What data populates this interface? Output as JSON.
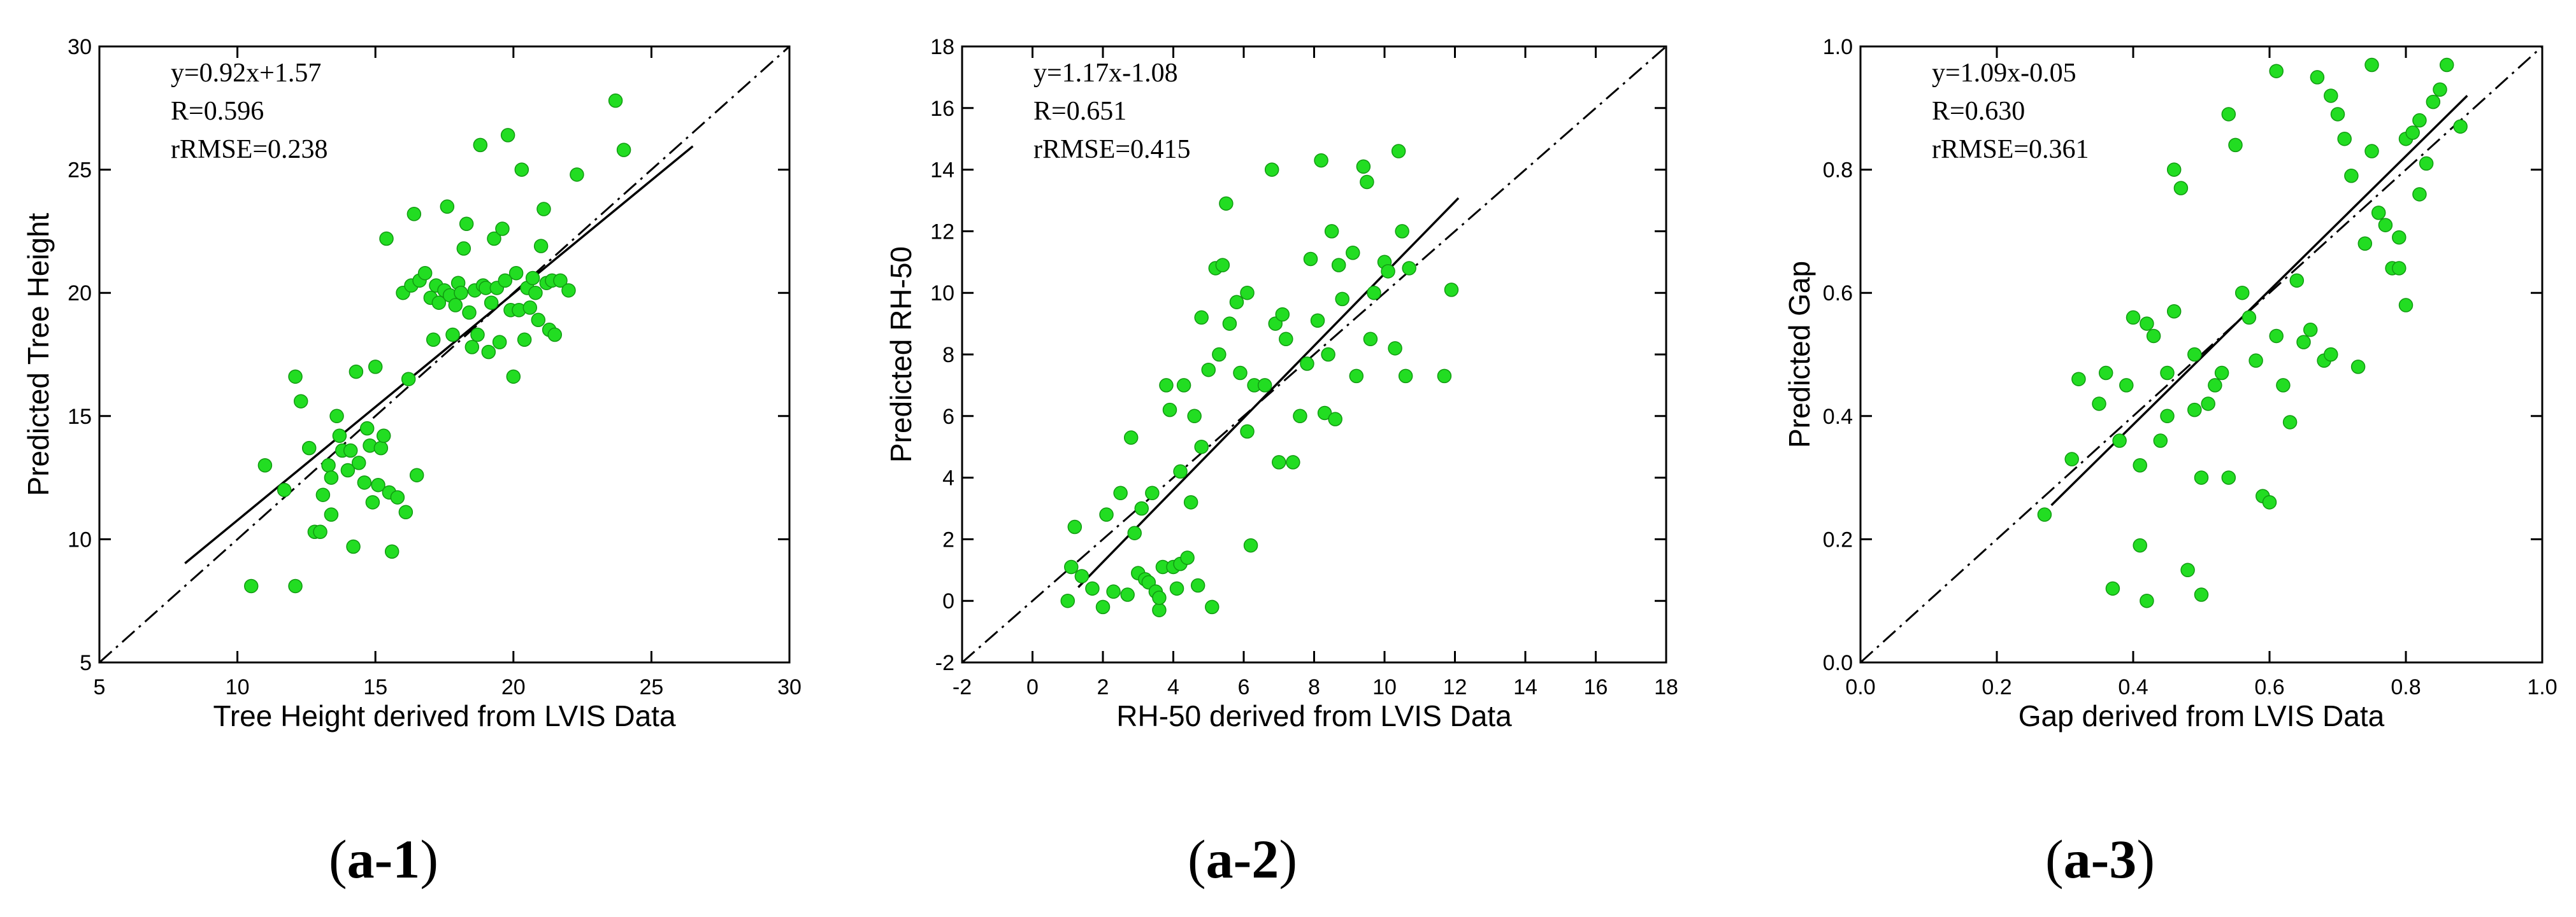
{
  "panels": [
    {
      "label_open": "(",
      "label_id": "a-1",
      "label_close": ")",
      "chart_data": {
        "type": "scatter",
        "xlabel": "Tree Height derived from LVIS Data",
        "ylabel": "Predicted Tree Height",
        "xlim": [
          5,
          30
        ],
        "ylim": [
          5,
          30
        ],
        "xticks": [
          5,
          10,
          15,
          20,
          25,
          30
        ],
        "yticks": [
          5,
          10,
          15,
          20,
          25,
          30
        ],
        "xtick_labels": [
          "5",
          "10",
          "15",
          "20",
          "25",
          "30"
        ],
        "ytick_labels": [
          "5",
          "10",
          "15",
          "20",
          "25",
          "30"
        ],
        "annotations": [
          "y=0.92x+1.57",
          "R=0.596",
          "rRMSE=0.238"
        ],
        "fit_line": {
          "slope": 0.92,
          "intercept": 1.57,
          "x_range": [
            8.1,
            26.5
          ]
        },
        "one_to_one_line": {
          "x_range": [
            5,
            30
          ]
        },
        "marker_color": "#22dd22",
        "marker_edge": "#119911",
        "points": [
          [
            10.5,
            8.1
          ],
          [
            12.1,
            8.1
          ],
          [
            11.0,
            13.0
          ],
          [
            11.7,
            12.0
          ],
          [
            12.1,
            16.6
          ],
          [
            12.3,
            15.6
          ],
          [
            12.6,
            13.7
          ],
          [
            12.8,
            10.3
          ],
          [
            13.0,
            10.3
          ],
          [
            13.1,
            11.8
          ],
          [
            13.3,
            13.0
          ],
          [
            13.4,
            12.5
          ],
          [
            13.4,
            11.0
          ],
          [
            13.6,
            15.0
          ],
          [
            13.7,
            14.2
          ],
          [
            13.8,
            13.6
          ],
          [
            14.0,
            12.8
          ],
          [
            14.1,
            13.6
          ],
          [
            14.2,
            9.7
          ],
          [
            14.3,
            16.8
          ],
          [
            14.4,
            13.1
          ],
          [
            14.6,
            12.3
          ],
          [
            14.7,
            14.5
          ],
          [
            14.8,
            13.8
          ],
          [
            14.9,
            11.5
          ],
          [
            15.0,
            17.0
          ],
          [
            15.1,
            12.2
          ],
          [
            15.2,
            13.7
          ],
          [
            15.3,
            14.2
          ],
          [
            15.4,
            22.2
          ],
          [
            15.5,
            11.9
          ],
          [
            15.6,
            9.5
          ],
          [
            15.8,
            11.7
          ],
          [
            16.0,
            20.0
          ],
          [
            16.1,
            11.1
          ],
          [
            16.2,
            16.5
          ],
          [
            16.3,
            20.3
          ],
          [
            16.4,
            23.2
          ],
          [
            16.5,
            12.6
          ],
          [
            16.6,
            20.5
          ],
          [
            16.8,
            20.8
          ],
          [
            17.0,
            19.8
          ],
          [
            17.1,
            18.1
          ],
          [
            17.2,
            20.3
          ],
          [
            17.3,
            19.6
          ],
          [
            17.5,
            20.1
          ],
          [
            17.6,
            23.5
          ],
          [
            17.7,
            19.9
          ],
          [
            17.8,
            18.3
          ],
          [
            17.9,
            19.5
          ],
          [
            18.0,
            20.4
          ],
          [
            18.1,
            20.0
          ],
          [
            18.2,
            21.8
          ],
          [
            18.3,
            22.8
          ],
          [
            18.4,
            19.2
          ],
          [
            18.5,
            17.8
          ],
          [
            18.6,
            20.1
          ],
          [
            18.7,
            18.3
          ],
          [
            18.8,
            26.0
          ],
          [
            18.9,
            20.3
          ],
          [
            19.0,
            20.2
          ],
          [
            19.1,
            17.6
          ],
          [
            19.2,
            19.6
          ],
          [
            19.3,
            22.2
          ],
          [
            19.4,
            20.2
          ],
          [
            19.5,
            18.0
          ],
          [
            19.6,
            22.6
          ],
          [
            19.7,
            20.5
          ],
          [
            19.8,
            26.4
          ],
          [
            19.9,
            19.3
          ],
          [
            20.0,
            16.6
          ],
          [
            20.1,
            20.8
          ],
          [
            20.2,
            19.3
          ],
          [
            20.3,
            25.0
          ],
          [
            20.4,
            18.1
          ],
          [
            20.5,
            20.2
          ],
          [
            20.6,
            19.4
          ],
          [
            20.7,
            20.6
          ],
          [
            20.8,
            20.0
          ],
          [
            20.9,
            18.9
          ],
          [
            21.0,
            21.9
          ],
          [
            21.1,
            23.4
          ],
          [
            21.2,
            20.4
          ],
          [
            21.3,
            18.5
          ],
          [
            21.4,
            20.5
          ],
          [
            21.5,
            18.3
          ],
          [
            21.7,
            20.5
          ],
          [
            22.0,
            20.1
          ],
          [
            22.3,
            24.8
          ],
          [
            23.7,
            27.8
          ],
          [
            24.0,
            25.8
          ]
        ]
      }
    },
    {
      "label_open": "(",
      "label_id": "a-2",
      "label_close": ")",
      "chart_data": {
        "type": "scatter",
        "xlabel": "RH-50 derived from LVIS Data",
        "ylabel": "Predicted RH-50",
        "xlim": [
          -2,
          18
        ],
        "ylim": [
          -2,
          18
        ],
        "xticks": [
          -2,
          0,
          2,
          4,
          6,
          8,
          10,
          12,
          14,
          16,
          18
        ],
        "yticks": [
          -2,
          0,
          2,
          4,
          6,
          8,
          10,
          12,
          14,
          16,
          18
        ],
        "xtick_labels": [
          "-2",
          "0",
          "2",
          "4",
          "6",
          "8",
          "10",
          "12",
          "14",
          "16",
          "18"
        ],
        "ytick_labels": [
          "-2",
          "0",
          "2",
          "4",
          "6",
          "8",
          "10",
          "12",
          "14",
          "16",
          "18"
        ],
        "annotations": [
          "y=1.17x-1.08",
          "R=0.651",
          "rRMSE=0.415"
        ],
        "fit_line": {
          "slope": 1.17,
          "intercept": -1.08,
          "x_range": [
            1.3,
            12.1
          ]
        },
        "one_to_one_line": {
          "x_range": [
            -2,
            18
          ]
        },
        "marker_color": "#22dd22",
        "marker_edge": "#119911",
        "points": [
          [
            1.0,
            0.0
          ],
          [
            1.1,
            1.1
          ],
          [
            1.2,
            2.4
          ],
          [
            1.4,
            0.8
          ],
          [
            1.7,
            0.4
          ],
          [
            2.0,
            -0.2
          ],
          [
            2.1,
            2.8
          ],
          [
            2.3,
            0.3
          ],
          [
            2.5,
            3.5
          ],
          [
            2.7,
            0.2
          ],
          [
            2.8,
            5.3
          ],
          [
            2.9,
            2.2
          ],
          [
            3.0,
            0.9
          ],
          [
            3.1,
            3.0
          ],
          [
            3.2,
            0.7
          ],
          [
            3.3,
            0.6
          ],
          [
            3.4,
            3.5
          ],
          [
            3.5,
            0.3
          ],
          [
            3.6,
            -0.3
          ],
          [
            3.6,
            0.1
          ],
          [
            3.7,
            1.1
          ],
          [
            3.8,
            7.0
          ],
          [
            3.9,
            6.2
          ],
          [
            4.0,
            1.1
          ],
          [
            4.1,
            0.4
          ],
          [
            4.2,
            4.2
          ],
          [
            4.2,
            1.2
          ],
          [
            4.3,
            7.0
          ],
          [
            4.4,
            1.4
          ],
          [
            4.5,
            3.2
          ],
          [
            4.6,
            6.0
          ],
          [
            4.7,
            0.5
          ],
          [
            4.8,
            5.0
          ],
          [
            4.8,
            9.2
          ],
          [
            5.0,
            7.5
          ],
          [
            5.1,
            -0.2
          ],
          [
            5.2,
            10.8
          ],
          [
            5.3,
            8.0
          ],
          [
            5.4,
            10.9
          ],
          [
            5.5,
            12.9
          ],
          [
            5.6,
            9.0
          ],
          [
            5.8,
            9.7
          ],
          [
            5.9,
            7.4
          ],
          [
            6.1,
            5.5
          ],
          [
            6.1,
            10.0
          ],
          [
            6.2,
            1.8
          ],
          [
            6.3,
            7.0
          ],
          [
            6.6,
            7.0
          ],
          [
            6.8,
            14.0
          ],
          [
            6.9,
            9.0
          ],
          [
            7.0,
            4.5
          ],
          [
            7.1,
            9.3
          ],
          [
            7.2,
            8.5
          ],
          [
            7.4,
            4.5
          ],
          [
            7.6,
            6.0
          ],
          [
            7.8,
            7.7
          ],
          [
            7.9,
            11.1
          ],
          [
            8.1,
            9.1
          ],
          [
            8.2,
            14.3
          ],
          [
            8.3,
            6.1
          ],
          [
            8.4,
            8.0
          ],
          [
            8.5,
            12.0
          ],
          [
            8.6,
            5.9
          ],
          [
            8.7,
            10.9
          ],
          [
            8.8,
            9.8
          ],
          [
            9.1,
            11.3
          ],
          [
            9.2,
            7.3
          ],
          [
            9.4,
            14.1
          ],
          [
            9.5,
            13.6
          ],
          [
            9.6,
            8.5
          ],
          [
            9.7,
            10.0
          ],
          [
            10.0,
            11.0
          ],
          [
            10.1,
            10.7
          ],
          [
            10.3,
            8.2
          ],
          [
            10.4,
            14.6
          ],
          [
            10.5,
            12.0
          ],
          [
            10.6,
            7.3
          ],
          [
            10.7,
            10.8
          ],
          [
            11.7,
            7.3
          ],
          [
            11.9,
            10.1
          ]
        ]
      }
    },
    {
      "label_open": "(",
      "label_id": "a-3",
      "label_close": ")",
      "chart_data": {
        "type": "scatter",
        "xlabel": "Gap derived from LVIS Data",
        "ylabel": "Predicted Gap",
        "xlim": [
          0,
          1
        ],
        "ylim": [
          0,
          1
        ],
        "xticks": [
          0,
          0.2,
          0.4,
          0.6,
          0.8,
          1.0
        ],
        "yticks": [
          0,
          0.2,
          0.4,
          0.6,
          0.8,
          1.0
        ],
        "xtick_labels": [
          "0.0",
          "0.2",
          "0.4",
          "0.6",
          "0.8",
          "1.0"
        ],
        "ytick_labels": [
          "0.0",
          "0.2",
          "0.4",
          "0.6",
          "0.8",
          "1.0"
        ],
        "annotations": [
          "y=1.09x-0.05",
          "R=0.630",
          "rRMSE=0.361"
        ],
        "fit_line": {
          "slope": 1.09,
          "intercept": -0.05,
          "x_range": [
            0.28,
            0.89
          ]
        },
        "one_to_one_line": {
          "x_range": [
            0,
            1
          ]
        },
        "marker_color": "#22dd22",
        "marker_edge": "#119911",
        "points": [
          [
            0.27,
            0.24
          ],
          [
            0.31,
            0.33
          ],
          [
            0.32,
            0.46
          ],
          [
            0.35,
            0.42
          ],
          [
            0.36,
            0.47
          ],
          [
            0.37,
            0.12
          ],
          [
            0.38,
            0.36
          ],
          [
            0.39,
            0.45
          ],
          [
            0.4,
            0.56
          ],
          [
            0.41,
            0.19
          ],
          [
            0.41,
            0.32
          ],
          [
            0.42,
            0.1
          ],
          [
            0.42,
            0.55
          ],
          [
            0.43,
            0.53
          ],
          [
            0.44,
            0.36
          ],
          [
            0.45,
            0.47
          ],
          [
            0.45,
            0.4
          ],
          [
            0.46,
            0.8
          ],
          [
            0.46,
            0.57
          ],
          [
            0.47,
            0.77
          ],
          [
            0.48,
            0.15
          ],
          [
            0.49,
            0.5
          ],
          [
            0.49,
            0.41
          ],
          [
            0.5,
            0.11
          ],
          [
            0.5,
            0.3
          ],
          [
            0.51,
            0.42
          ],
          [
            0.52,
            0.45
          ],
          [
            0.53,
            0.47
          ],
          [
            0.54,
            0.89
          ],
          [
            0.54,
            0.3
          ],
          [
            0.55,
            0.84
          ],
          [
            0.56,
            0.6
          ],
          [
            0.57,
            0.56
          ],
          [
            0.58,
            0.49
          ],
          [
            0.59,
            0.27
          ],
          [
            0.6,
            0.26
          ],
          [
            0.61,
            0.96
          ],
          [
            0.61,
            0.53
          ],
          [
            0.62,
            0.45
          ],
          [
            0.63,
            0.39
          ],
          [
            0.64,
            0.62
          ],
          [
            0.65,
            0.52
          ],
          [
            0.66,
            0.54
          ],
          [
            0.67,
            0.95
          ],
          [
            0.68,
            0.49
          ],
          [
            0.69,
            0.92
          ],
          [
            0.69,
            0.5
          ],
          [
            0.7,
            0.89
          ],
          [
            0.71,
            0.85
          ],
          [
            0.72,
            0.79
          ],
          [
            0.73,
            0.48
          ],
          [
            0.74,
            0.68
          ],
          [
            0.75,
            0.97
          ],
          [
            0.75,
            0.83
          ],
          [
            0.76,
            0.73
          ],
          [
            0.77,
            0.71
          ],
          [
            0.78,
            0.64
          ],
          [
            0.79,
            0.69
          ],
          [
            0.79,
            0.64
          ],
          [
            0.8,
            0.58
          ],
          [
            0.8,
            0.85
          ],
          [
            0.81,
            0.86
          ],
          [
            0.82,
            0.88
          ],
          [
            0.82,
            0.76
          ],
          [
            0.83,
            0.81
          ],
          [
            0.84,
            0.91
          ],
          [
            0.85,
            0.93
          ],
          [
            0.86,
            0.97
          ],
          [
            0.88,
            0.87
          ]
        ]
      }
    }
  ]
}
